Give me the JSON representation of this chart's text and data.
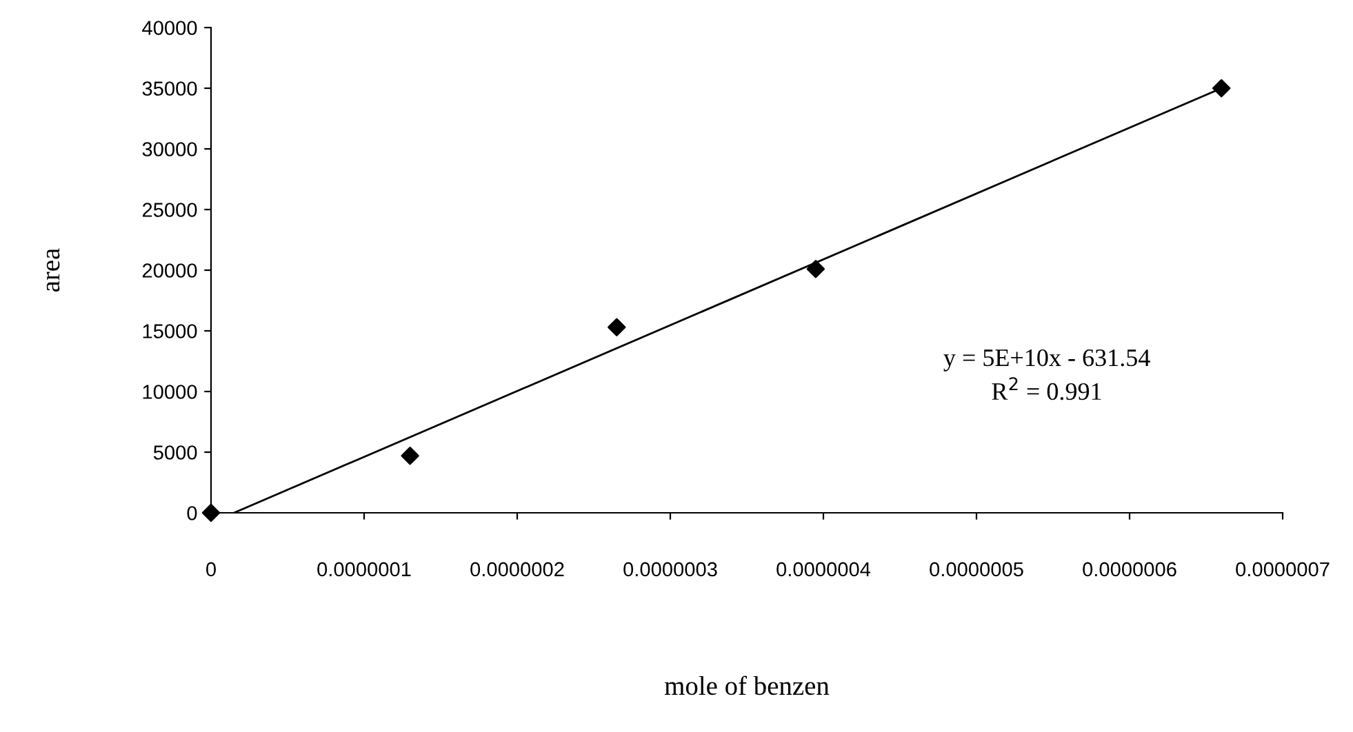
{
  "chart_data": {
    "type": "scatter",
    "xlabel": "mole of benzen",
    "ylabel": "area",
    "series": [
      {
        "color": "#000000",
        "marker": "diamond",
        "x": [
          0,
          1.3e-07,
          2.65e-07,
          3.95e-07,
          6.6e-07
        ],
        "values": [
          0,
          4700,
          15300,
          20100,
          35000
        ]
      },
      {
        "type": "line",
        "color": "#000000",
        "marker": "none",
        "x": [
          1.5e-08,
          6.6e-07
        ],
        "values": [
          0,
          35000
        ]
      }
    ],
    "annotations": [
      "y = 5E+10x - 631.54\nR$^{2}$ = 0.991"
    ],
    "xlim": [
      0,
      7e-07
    ],
    "ylim": [
      0,
      40000
    ],
    "xticks": [
      {
        "value": 0,
        "label": "0"
      },
      {
        "value": 1e-07,
        "label": "0.0000001"
      },
      {
        "value": 2e-07,
        "label": "0.0000002"
      },
      {
        "value": 3e-07,
        "label": "0.0000003"
      },
      {
        "value": 4e-07,
        "label": "0.0000004"
      },
      {
        "value": 5e-07,
        "label": "0.0000005"
      },
      {
        "value": 6e-07,
        "label": "0.0000006"
      },
      {
        "value": 7e-07,
        "label": "0.0000007"
      }
    ],
    "yticks": [
      0,
      5000,
      10000,
      15000,
      20000,
      25000,
      30000,
      35000,
      40000
    ],
    "grid": false,
    "legend": false
  }
}
